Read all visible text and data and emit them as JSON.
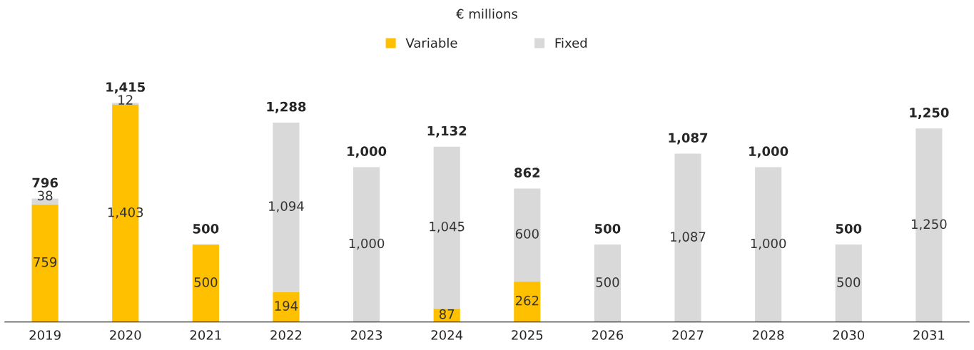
{
  "chart_data": {
    "type": "bar",
    "title": "€ millions",
    "stacked": true,
    "legend": "top",
    "categories": [
      "2019",
      "2020",
      "2021",
      "2022",
      "2023",
      "2024",
      "2025",
      "2026",
      "2027",
      "2028",
      "2030",
      "2031"
    ],
    "series": [
      {
        "name": "Variable",
        "color": "#ffc000",
        "values": [
          759,
          1403,
          500,
          194,
          0,
          87,
          262,
          0,
          0,
          0,
          0,
          0
        ],
        "value_labels": [
          "759",
          "1,403",
          "500",
          "194",
          null,
          "87",
          "262",
          null,
          null,
          null,
          null,
          null
        ]
      },
      {
        "name": "Fixed",
        "color": "#d9d9d9",
        "values": [
          38,
          12,
          0,
          1094,
          1000,
          1045,
          600,
          500,
          1087,
          1000,
          500,
          1250
        ],
        "value_labels": [
          "38",
          "12",
          null,
          "1,094",
          "1,000",
          "1,045",
          "600",
          "500",
          "1,087",
          "1,000",
          "500",
          "1,250"
        ]
      }
    ],
    "totals": [
      "796",
      "1,415",
      "500",
      "1,288",
      "1,000",
      "1,132",
      "862",
      "500",
      "1,087",
      "1,000",
      "500",
      "1,250"
    ]
  }
}
